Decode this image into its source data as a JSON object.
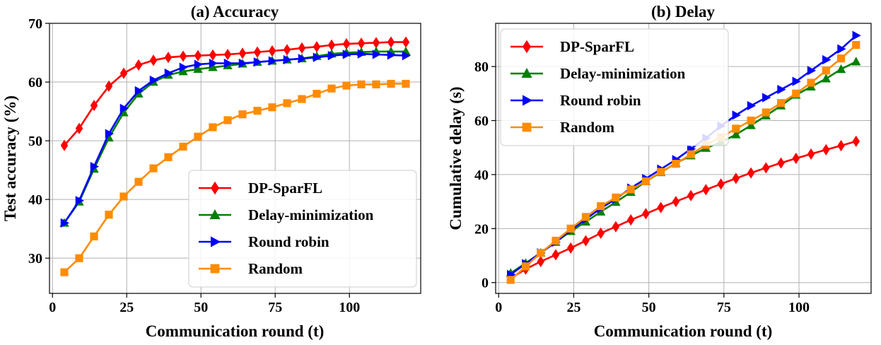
{
  "chart_data": [
    {
      "type": "line",
      "title": "(a) Accuracy",
      "xlabel": "Communication round (t)",
      "ylabel": "Test accuracy (%)",
      "xlim": [
        -1,
        124
      ],
      "ylim": [
        24,
        70
      ],
      "xticks": [
        0,
        25,
        50,
        75,
        100
      ],
      "yticks": [
        30,
        40,
        50,
        60,
        70
      ],
      "grid": true,
      "legend_position": "lower-right",
      "x": [
        4,
        9,
        14,
        19,
        24,
        29,
        34,
        39,
        44,
        49,
        54,
        59,
        64,
        69,
        74,
        79,
        84,
        89,
        94,
        99,
        104,
        109,
        114,
        119
      ],
      "series": [
        {
          "name": "DP-SparFL",
          "color": "#ff0000",
          "marker": "diamond",
          "values": [
            49.2,
            52.1,
            56.0,
            59.3,
            61.5,
            62.9,
            63.7,
            64.2,
            64.4,
            64.5,
            64.6,
            64.7,
            64.9,
            65.1,
            65.3,
            65.5,
            65.8,
            66.0,
            66.3,
            66.5,
            66.6,
            66.7,
            66.8,
            66.8
          ]
        },
        {
          "name": "Delay-minimization",
          "color": "#008000",
          "marker": "triangle-up",
          "values": [
            36.0,
            39.6,
            45.2,
            50.5,
            54.8,
            58.0,
            60.0,
            61.2,
            61.8,
            62.2,
            62.5,
            62.8,
            63.1,
            63.4,
            63.6,
            63.8,
            64.0,
            64.4,
            64.8,
            65.0,
            65.1,
            65.2,
            65.2,
            65.2
          ]
        },
        {
          "name": "Round robin",
          "color": "#0000ff",
          "marker": "triangle-right",
          "values": [
            36.0,
            39.8,
            45.6,
            51.2,
            55.5,
            58.5,
            60.3,
            61.5,
            62.5,
            63.0,
            63.2,
            63.2,
            63.2,
            63.4,
            63.6,
            63.8,
            64.0,
            64.2,
            64.5,
            64.7,
            64.8,
            64.7,
            64.6,
            64.5
          ]
        },
        {
          "name": "Random",
          "color": "#ff8c00",
          "marker": "square",
          "values": [
            27.6,
            30.0,
            33.7,
            37.4,
            40.5,
            43.0,
            45.3,
            47.2,
            49.0,
            50.7,
            52.3,
            53.5,
            54.5,
            55.1,
            55.7,
            56.4,
            57.1,
            58.0,
            58.9,
            59.4,
            59.6,
            59.6,
            59.7,
            59.7
          ]
        }
      ]
    },
    {
      "type": "line",
      "title": "(b) Delay",
      "xlabel": "Communication round (t)",
      "ylabel": "Cumulative delay (s)",
      "xlim": [
        -1,
        124
      ],
      "ylim": [
        -4,
        96
      ],
      "xticks": [
        0,
        25,
        50,
        75,
        100
      ],
      "yticks": [
        0,
        20,
        40,
        60,
        80
      ],
      "grid": true,
      "legend_position": "top-left",
      "x": [
        4,
        9,
        14,
        19,
        24,
        29,
        34,
        39,
        44,
        49,
        54,
        59,
        64,
        69,
        74,
        79,
        84,
        89,
        94,
        99,
        104,
        109,
        114,
        119
      ],
      "series": [
        {
          "name": "DP-SparFL",
          "color": "#ff0000",
          "marker": "diamond",
          "values": [
            1.6,
            5.0,
            7.8,
            10.3,
            12.8,
            15.5,
            18.3,
            20.7,
            23.2,
            25.5,
            27.8,
            30.0,
            32.2,
            34.4,
            36.5,
            38.6,
            40.6,
            42.5,
            44.3,
            46.0,
            47.6,
            49.2,
            50.7,
            52.3
          ]
        },
        {
          "name": "Delay-minimization",
          "color": "#008000",
          "marker": "triangle-up",
          "values": [
            3.5,
            7.2,
            11.0,
            15.0,
            19.0,
            22.5,
            26.2,
            29.8,
            33.5,
            37.5,
            40.8,
            44.2,
            47.0,
            49.8,
            52.0,
            54.8,
            58.2,
            61.8,
            65.5,
            69.5,
            72.5,
            75.5,
            79.0,
            81.8
          ]
        },
        {
          "name": "Round robin",
          "color": "#0000ff",
          "marker": "triangle-right",
          "values": [
            3.0,
            7.0,
            11.0,
            15.0,
            19.5,
            23.5,
            27.5,
            31.0,
            35.0,
            38.5,
            42.0,
            45.5,
            49.5,
            53.5,
            58.0,
            62.0,
            65.5,
            68.5,
            71.5,
            74.5,
            78.5,
            82.5,
            86.5,
            91.5
          ]
        },
        {
          "name": "Random",
          "color": "#ff8c00",
          "marker": "square",
          "values": [
            1.0,
            6.0,
            11.0,
            15.5,
            20.0,
            24.3,
            28.3,
            31.5,
            34.5,
            37.5,
            41.0,
            44.0,
            47.5,
            51.0,
            53.8,
            57.0,
            60.0,
            63.0,
            66.5,
            70.0,
            74.0,
            78.5,
            83.0,
            88.0
          ]
        }
      ]
    }
  ]
}
